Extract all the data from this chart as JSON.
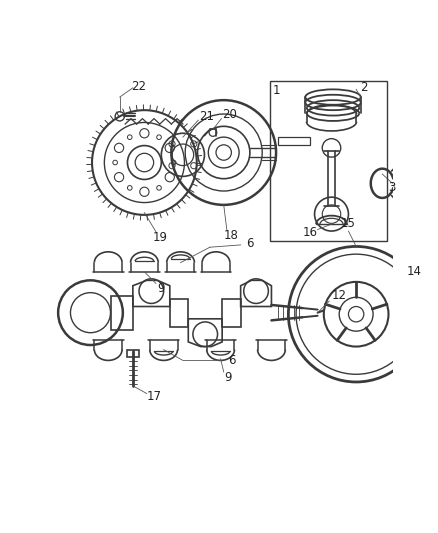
{
  "bg_color": "#ffffff",
  "line_color": "#3a3a3a",
  "figsize": [
    4.38,
    5.33
  ],
  "dpi": 100,
  "xlim": [
    0,
    438
  ],
  "ylim": [
    0,
    533
  ]
}
